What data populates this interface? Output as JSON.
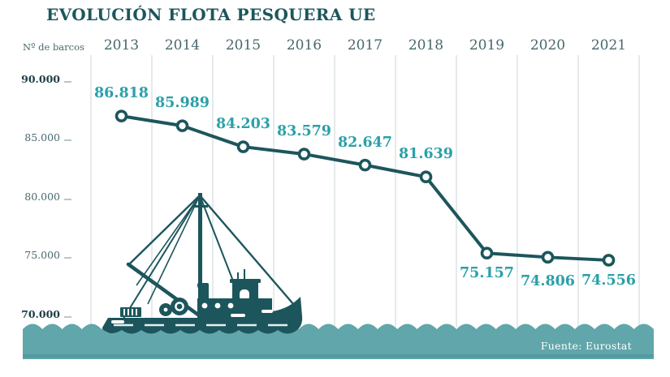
{
  "title": "EVOLUCIÓN FLOTA PESQUERA UE",
  "y_axis_label": "Nº de barcos",
  "source": "Fuente: Eurostat",
  "chart_data": {
    "type": "line",
    "title": "EVOLUCIÓN FLOTA PESQUERA UE",
    "ylabel": "Nº de barcos",
    "xlabel": "",
    "categories": [
      "2013",
      "2014",
      "2015",
      "2016",
      "2017",
      "2018",
      "2019",
      "2020",
      "2021"
    ],
    "values": [
      86818,
      85989,
      84203,
      83579,
      82647,
      81639,
      75157,
      74806,
      74556
    ],
    "value_labels": [
      "86.818",
      "85.989",
      "84.203",
      "83.579",
      "82.647",
      "81.639",
      "75.157",
      "74.806",
      "74.556"
    ],
    "label_position": [
      "above",
      "above",
      "above",
      "above",
      "above",
      "above",
      "below",
      "below",
      "below"
    ],
    "y_ticks": [
      {
        "value": 90000,
        "label": "90.000",
        "bold": true
      },
      {
        "value": 85000,
        "label": "85.000",
        "bold": false
      },
      {
        "value": 80000,
        "label": "80.000",
        "bold": false
      },
      {
        "value": 75000,
        "label": "75.000",
        "bold": false
      },
      {
        "value": 70000,
        "label": "70.000",
        "bold": true
      }
    ],
    "ylim": [
      70000,
      90000
    ],
    "grid": "vertical",
    "legend": "none",
    "source": "Fuente: Eurostat"
  },
  "decoration": {
    "boat_illustration": "fishing-trawler-silhouette",
    "wave_band": "sea-waves"
  },
  "colors": {
    "dark_teal": "#1c565c",
    "label_teal": "#2aa0a8",
    "axis_text": "#47686d",
    "axis_text_strong": "#1d4046",
    "gridline": "#e5eaea",
    "wave_band": "#60a6ab",
    "wave_band_dark": "#539aa0",
    "marker_fill": "#ffffff",
    "background": "#ffffff",
    "source_text": "#ffffff"
  }
}
